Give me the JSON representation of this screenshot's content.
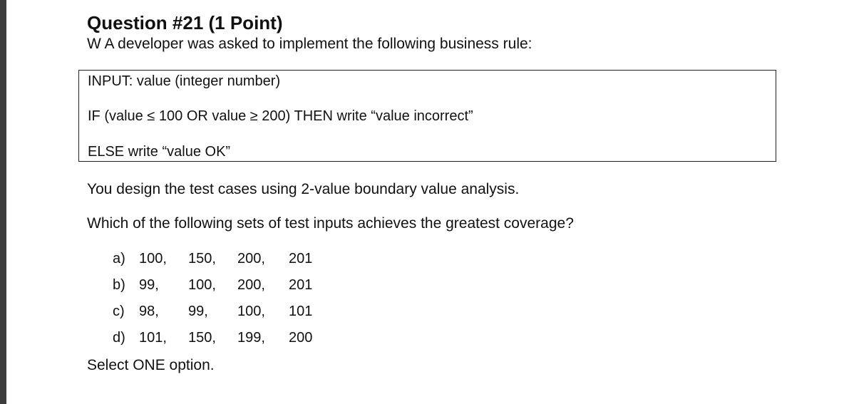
{
  "question": {
    "title": "Question #21 (1 Point)",
    "intro": "W A developer was asked to implement the following business rule:"
  },
  "rule": {
    "line1": "INPUT: value (integer number)",
    "line2": "IF (value ≤ 100 OR value ≥ 200) THEN write “value incorrect”",
    "line3": "ELSE write “value OK”"
  },
  "body": {
    "design": "You design the test cases using 2-value boundary value analysis.",
    "prompt": "Which of the following sets of test inputs achieves the greatest coverage?"
  },
  "options": [
    {
      "letter": "a)",
      "values": [
        "100,",
        "150,",
        "200,",
        "201"
      ]
    },
    {
      "letter": "b)",
      "values": [
        "99,",
        "100,",
        "200,",
        "201"
      ]
    },
    {
      "letter": "c)",
      "values": [
        "98,",
        "99,",
        "100,",
        "101"
      ]
    },
    {
      "letter": "d)",
      "values": [
        "101,",
        "150,",
        "199,",
        "200"
      ]
    }
  ],
  "footer": {
    "instruction": "Select ONE option."
  }
}
